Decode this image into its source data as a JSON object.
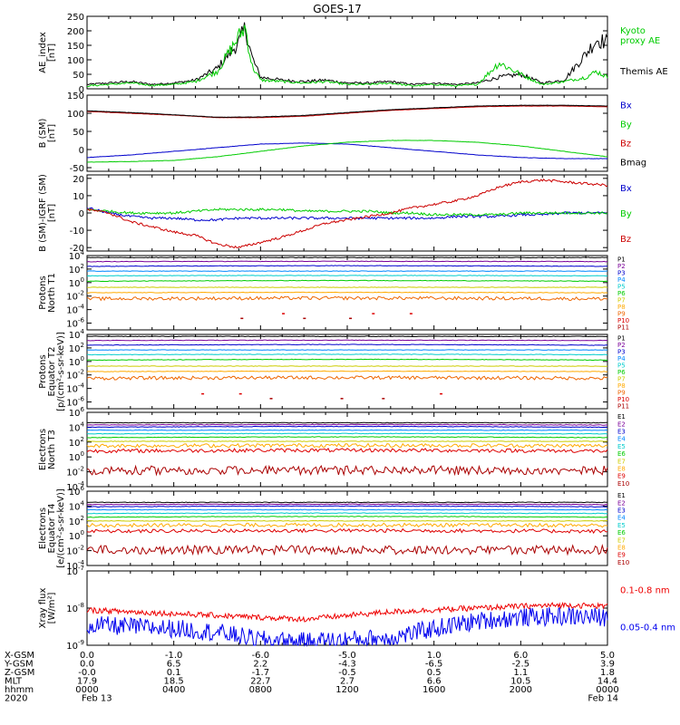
{
  "figure": {
    "title": "GOES-17",
    "footer_rows": [
      {
        "label": "X-GSM",
        "values": [
          "0.0",
          "-1.0",
          "-6.0",
          "-5.0",
          "1.0",
          "6.0",
          "5.0"
        ]
      },
      {
        "label": "Y-GSM",
        "values": [
          "0.0",
          "6.5",
          "2.2",
          "-4.3",
          "-6.5",
          "-2.5",
          "3.9"
        ]
      },
      {
        "label": "Z-GSM",
        "values": [
          "-0.0",
          "0.1",
          "-1.7",
          "-0.5",
          "0.5",
          "1.1",
          "1.8"
        ]
      },
      {
        "label": "MLT",
        "values": [
          "17.9",
          "18.5",
          "22.7",
          "2.7",
          "6.6",
          "10.5",
          "14.4"
        ]
      },
      {
        "label": "hhmm",
        "values": [
          "0000",
          "0400",
          "0800",
          "1200",
          "1600",
          "2000",
          "0000"
        ]
      },
      {
        "label": "2020",
        "values": [
          "Feb 13",
          "",
          "",
          "",
          "",
          "",
          "Feb 14"
        ]
      }
    ]
  },
  "chart_data": [
    {
      "type": "line",
      "ylabel": [
        "AE_index",
        "[nT]"
      ],
      "ylim": [
        0,
        250
      ],
      "scale": "linear",
      "yticks": [
        0,
        50,
        100,
        150,
        200,
        250
      ],
      "x_hours": [
        0,
        1,
        2,
        3,
        4,
        5,
        6,
        7,
        7.3,
        7.6,
        8,
        9,
        10,
        11,
        12,
        13,
        14,
        15,
        16,
        17,
        18,
        19,
        20,
        21,
        22,
        23,
        23.5,
        24
      ],
      "series": [
        {
          "name": "Themis AE",
          "color": "#000000",
          "values": [
            15,
            20,
            25,
            15,
            20,
            30,
            70,
            160,
            210,
            110,
            40,
            30,
            25,
            30,
            20,
            20,
            25,
            15,
            20,
            15,
            20,
            40,
            50,
            20,
            30,
            120,
            170,
            160
          ]
        },
        {
          "name": "Kyoto proxy AE",
          "color": "#00cc00",
          "values": [
            10,
            15,
            20,
            12,
            15,
            25,
            60,
            180,
            215,
            80,
            30,
            25,
            20,
            25,
            15,
            15,
            20,
            10,
            15,
            10,
            15,
            90,
            50,
            15,
            25,
            40,
            60,
            40
          ]
        }
      ],
      "legend": [
        {
          "text": [
            "Kyoto",
            "proxy AE"
          ],
          "color": "#00cc00"
        },
        {
          "text": [
            "Themis AE"
          ],
          "color": "#000000"
        }
      ]
    },
    {
      "type": "line",
      "ylabel": [
        "B (SM)",
        "[nT]"
      ],
      "ylim": [
        -60,
        150
      ],
      "scale": "linear",
      "yticks": [
        -50,
        0,
        50,
        100,
        150
      ],
      "x_hours": [
        0,
        2,
        4,
        6,
        8,
        10,
        12,
        14,
        16,
        18,
        20,
        22,
        24
      ],
      "series": [
        {
          "name": "Bx",
          "color": "#0000cc",
          "values": [
            -22,
            -15,
            -5,
            5,
            15,
            18,
            15,
            5,
            -5,
            -15,
            -22,
            -25,
            -25
          ]
        },
        {
          "name": "By",
          "color": "#00cc00",
          "values": [
            -35,
            -33,
            -30,
            -20,
            -5,
            10,
            20,
            25,
            25,
            20,
            10,
            -5,
            -20
          ]
        },
        {
          "name": "Bz",
          "color": "#cc0000",
          "values": [
            105,
            100,
            95,
            88,
            88,
            92,
            100,
            108,
            113,
            118,
            120,
            120,
            118
          ]
        },
        {
          "name": "Bmag",
          "color": "#000000",
          "values": [
            107,
            102,
            96,
            89,
            90,
            94,
            102,
            110,
            115,
            120,
            122,
            122,
            120
          ]
        }
      ],
      "legend": [
        {
          "text": [
            "Bx"
          ],
          "color": "#0000cc"
        },
        {
          "text": [
            "By"
          ],
          "color": "#00cc00"
        },
        {
          "text": [
            "Bz"
          ],
          "color": "#cc0000"
        },
        {
          "text": [
            "Bmag"
          ],
          "color": "#000000"
        }
      ]
    },
    {
      "type": "line",
      "ylabel": [
        "B (SM)-IGRF (SM)",
        "[nT]"
      ],
      "ylim": [
        -22,
        22
      ],
      "scale": "linear",
      "yticks": [
        -20,
        -10,
        0,
        10,
        20
      ],
      "x_hours": [
        0,
        1,
        2,
        3,
        4,
        5,
        6,
        7,
        8,
        9,
        10,
        11,
        12,
        13,
        14,
        15,
        16,
        17,
        18,
        19,
        20,
        21,
        22,
        23,
        24
      ],
      "series": [
        {
          "name": "Bx",
          "color": "#0000cc",
          "values": [
            3,
            0,
            -2,
            -3,
            -3,
            -4,
            -4,
            -3,
            -3,
            -3,
            -3,
            -3,
            -3,
            -3,
            -3,
            -3,
            -3,
            -2,
            -2,
            -2,
            -1,
            -1,
            0,
            0,
            0
          ]
        },
        {
          "name": "By",
          "color": "#00cc00",
          "values": [
            2,
            1,
            0,
            0,
            0,
            1,
            2,
            2,
            2,
            2,
            1,
            1,
            1,
            1,
            0,
            0,
            -1,
            -1,
            -1,
            -1,
            0,
            0,
            0,
            0,
            0
          ]
        },
        {
          "name": "Bz",
          "color": "#cc0000",
          "values": [
            2,
            0,
            -5,
            -8,
            -11,
            -13,
            -18,
            -20,
            -17,
            -14,
            -10,
            -6,
            -4,
            -2,
            0,
            3,
            5,
            7,
            10,
            15,
            18,
            19,
            18,
            17,
            16
          ]
        }
      ],
      "legend": [
        {
          "text": [
            "Bx"
          ],
          "color": "#0000cc"
        },
        {
          "text": [
            "By"
          ],
          "color": "#00cc00"
        },
        {
          "text": [
            "Bz"
          ],
          "color": "#cc0000"
        }
      ]
    },
    {
      "type": "line",
      "ylabel": [
        "Protons",
        "North T1"
      ],
      "ylim_exp": [
        -7,
        4
      ],
      "scale": "log",
      "ytick_exps": [
        -6,
        -4,
        -2,
        0,
        2,
        4
      ],
      "flat_levels_exp": [
        3.7,
        3.1,
        2.4,
        1.7,
        1.0,
        0.2,
        -0.7,
        -1.5,
        -2.4,
        -4.6,
        -5.3
      ],
      "series": [
        {
          "name": "P1",
          "color": "#000000"
        },
        {
          "name": "P2",
          "color": "#7a0099"
        },
        {
          "name": "P3",
          "color": "#0000cc"
        },
        {
          "name": "P4",
          "color": "#0088ff"
        },
        {
          "name": "P5",
          "color": "#00cccc"
        },
        {
          "name": "P6",
          "color": "#00cc00"
        },
        {
          "name": "P7",
          "color": "#cccc00"
        },
        {
          "name": "P8",
          "color": "#ffaa00"
        },
        {
          "name": "P9",
          "color": "#ee6600"
        },
        {
          "name": "P10",
          "color": "#dd0000"
        },
        {
          "name": "P11",
          "color": "#aa0000"
        }
      ]
    },
    {
      "type": "line",
      "ylabel": [
        "Protons",
        "Equator T2",
        "[p/(cm²-s-sr-keV)]"
      ],
      "ylim_exp": [
        -7,
        4
      ],
      "scale": "log",
      "ytick_exps": [
        -6,
        -4,
        -2,
        0,
        2,
        4
      ],
      "flat_levels_exp": [
        3.7,
        3.1,
        2.4,
        1.7,
        1.0,
        0.2,
        -0.7,
        -1.5,
        -2.5,
        -4.8,
        -5.5
      ],
      "series": [
        {
          "name": "P1",
          "color": "#000000"
        },
        {
          "name": "P2",
          "color": "#7a0099"
        },
        {
          "name": "P3",
          "color": "#0000cc"
        },
        {
          "name": "P4",
          "color": "#0088ff"
        },
        {
          "name": "P5",
          "color": "#00cccc"
        },
        {
          "name": "P6",
          "color": "#00cc00"
        },
        {
          "name": "P7",
          "color": "#cccc00"
        },
        {
          "name": "P8",
          "color": "#ffaa00"
        },
        {
          "name": "P9",
          "color": "#ee6600"
        },
        {
          "name": "P10",
          "color": "#dd0000"
        },
        {
          "name": "P11",
          "color": "#aa0000"
        }
      ]
    },
    {
      "type": "line",
      "ylabel": [
        "Electrons",
        "North T3"
      ],
      "ylim_exp": [
        -4,
        6
      ],
      "scale": "log",
      "ytick_exps": [
        -4,
        -2,
        0,
        2,
        4,
        6
      ],
      "flat_levels_exp": [
        4.6,
        4.3,
        4.0,
        3.6,
        3.1,
        2.6,
        2.1,
        1.5,
        0.8,
        -1.5
      ],
      "series": [
        {
          "name": "E1",
          "color": "#000000"
        },
        {
          "name": "E2",
          "color": "#7a0099"
        },
        {
          "name": "E3",
          "color": "#0000cc"
        },
        {
          "name": "E4",
          "color": "#0088ff"
        },
        {
          "name": "E5",
          "color": "#00cccc"
        },
        {
          "name": "E6",
          "color": "#00cc00"
        },
        {
          "name": "E7",
          "color": "#cccc00"
        },
        {
          "name": "E8",
          "color": "#ffaa00"
        },
        {
          "name": "E9",
          "color": "#dd0000"
        },
        {
          "name": "E10",
          "color": "#aa0000"
        }
      ]
    },
    {
      "type": "line",
      "ylabel": [
        "Electrons",
        "Equator T4",
        "[e/(cm²-s-sr-keV)]"
      ],
      "ylim_exp": [
        -4,
        6
      ],
      "scale": "log",
      "ytick_exps": [
        -4,
        -2,
        0,
        2,
        4,
        6
      ],
      "flat_levels_exp": [
        4.5,
        4.2,
        3.9,
        3.5,
        3.0,
        2.5,
        2.0,
        1.4,
        0.6,
        -1.6
      ],
      "series": [
        {
          "name": "E1",
          "color": "#000000"
        },
        {
          "name": "E2",
          "color": "#7a0099"
        },
        {
          "name": "E3",
          "color": "#0000cc"
        },
        {
          "name": "E4",
          "color": "#0088ff"
        },
        {
          "name": "E5",
          "color": "#00cccc"
        },
        {
          "name": "E6",
          "color": "#00cc00"
        },
        {
          "name": "E7",
          "color": "#cccc00"
        },
        {
          "name": "E8",
          "color": "#ffaa00"
        },
        {
          "name": "E9",
          "color": "#dd0000"
        },
        {
          "name": "E10",
          "color": "#aa0000"
        }
      ]
    },
    {
      "type": "line",
      "ylabel": [
        "Xray flux",
        "[W/m²]"
      ],
      "ylim_exp": [
        -9,
        -7
      ],
      "scale": "log",
      "ytick_exps": [
        -9,
        -8,
        -7
      ],
      "x_hours": [
        0,
        2,
        4,
        6,
        8,
        10,
        12,
        14,
        16,
        18,
        20,
        22,
        24
      ],
      "series": [
        {
          "name": "0.1-0.8 nm",
          "color": "#ee0000",
          "level_exp": [
            -8.05,
            -8.1,
            -8.15,
            -8.2,
            -8.25,
            -8.3,
            -8.2,
            -8.1,
            -8.05,
            -8.0,
            -7.95,
            -7.92,
            -7.95
          ]
        },
        {
          "name": "0.05-0.4 nm",
          "color": "#0000ee",
          "level_exp": [
            -8.45,
            -8.5,
            -8.55,
            -8.65,
            -8.85,
            -8.9,
            -8.85,
            -8.8,
            -8.55,
            -8.35,
            -8.25,
            -8.22,
            -8.25
          ]
        }
      ],
      "legend": [
        {
          "text": [
            "0.1-0.8 nm"
          ],
          "color": "#ee0000"
        },
        {
          "text": [
            "0.05-0.4 nm"
          ],
          "color": "#0000ee"
        }
      ]
    }
  ]
}
